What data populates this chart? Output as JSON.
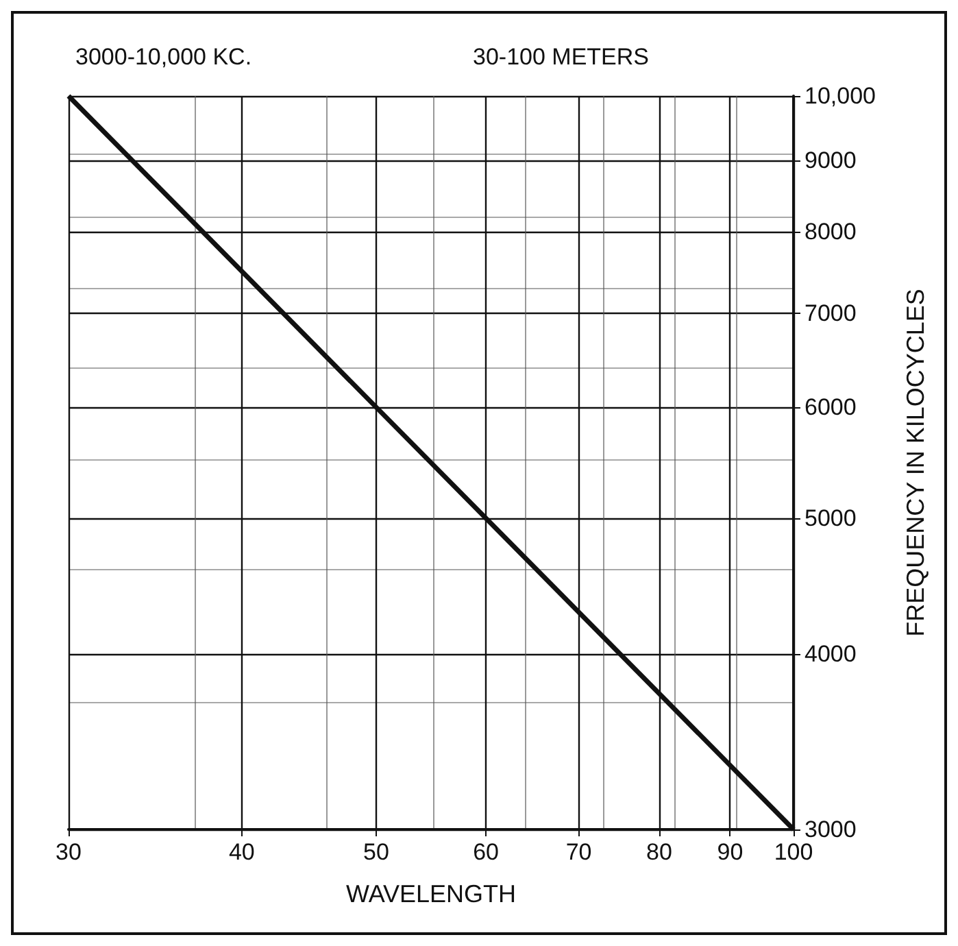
{
  "chart_data": {
    "type": "line",
    "title": "3000-10,000 KC.",
    "subtitle": "30-100 METERS",
    "xlabel": "WAVELENGTH",
    "ylabel": "FREQUENCY IN KILOCYCLES",
    "x": [
      30,
      100
    ],
    "series": [
      {
        "color": "#111111",
        "values": [
          10000,
          3000
        ]
      }
    ],
    "log": "xy",
    "xlim": [
      30,
      100
    ],
    "ylim": [
      3000,
      10000
    ],
    "xticks": [
      30,
      40,
      50,
      60,
      70,
      80,
      90,
      100
    ],
    "yticks": [
      3000,
      4000,
      5000,
      6000,
      7000,
      8000,
      9000,
      {
        "value": 10000,
        "label": "10,000"
      }
    ],
    "grid": true,
    "marker": "none",
    "line_style": "solid"
  }
}
